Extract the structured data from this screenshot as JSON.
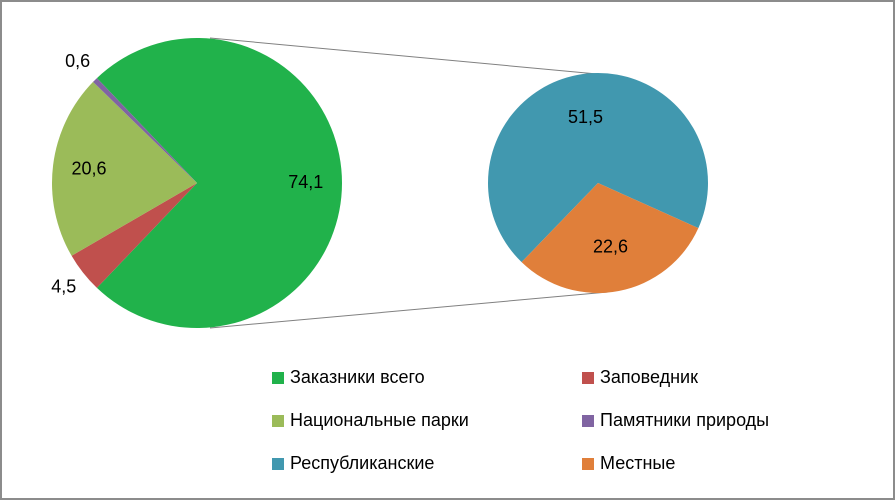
{
  "chart_data": {
    "type": "pie",
    "main": {
      "categories": [
        "Заказники всего",
        "Заповедник",
        "Национальные парки",
        "Памятники природы"
      ],
      "values": [
        74.1,
        4.5,
        20.6,
        0.6
      ],
      "value_labels": [
        "74,1",
        "4,5",
        "20,6",
        "0,6"
      ],
      "colors": [
        "#21b24b",
        "#c0504d",
        "#9bbb59",
        "#8064a2"
      ]
    },
    "secondary": {
      "categories": [
        "Республиканские",
        "Местные"
      ],
      "values": [
        51.5,
        22.6
      ],
      "value_labels": [
        "51,5",
        "22,6"
      ],
      "colors": [
        "#4198af",
        "#e07f3a"
      ]
    }
  }
}
